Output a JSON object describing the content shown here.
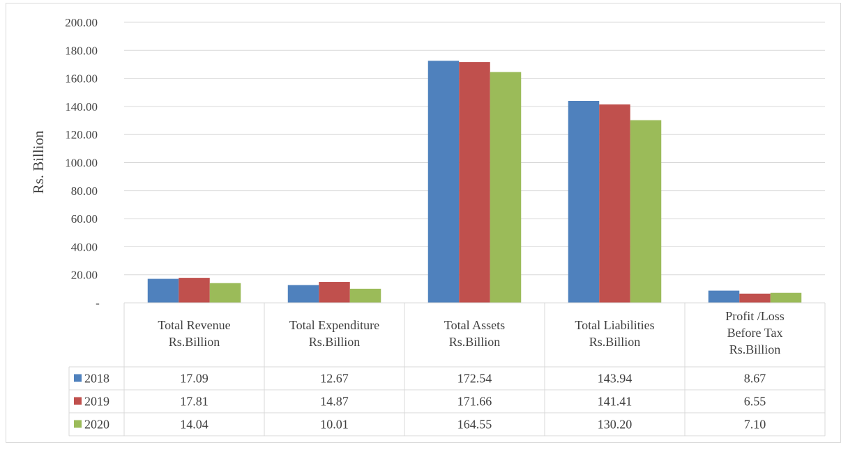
{
  "chart_data": {
    "type": "bar",
    "ylabel": "Rs. Billion",
    "ylim": [
      0,
      200
    ],
    "y_ticks": [
      "-",
      "20.00",
      "40.00",
      "60.00",
      "80.00",
      "100.00",
      "120.00",
      "140.00",
      "160.00",
      "180.00",
      "200.00"
    ],
    "grid": true,
    "legend": "data-table",
    "categories": [
      [
        "Total Revenue",
        "Rs.Billion"
      ],
      [
        "Total Expenditure",
        "Rs.Billion"
      ],
      [
        "Total Assets",
        "Rs.Billion"
      ],
      [
        "Total Liabilities",
        "Rs.Billion"
      ],
      [
        "Profit /Loss",
        "Before Tax",
        "Rs.Billion"
      ]
    ],
    "series": [
      {
        "name": "2018",
        "color": "#4f81bd",
        "values": [
          17.09,
          12.67,
          172.54,
          143.94,
          8.67
        ],
        "labels": [
          "17.09",
          "12.67",
          "172.54",
          "143.94",
          "8.67"
        ]
      },
      {
        "name": "2019",
        "color": "#c0504d",
        "values": [
          17.81,
          14.87,
          171.66,
          141.41,
          6.55
        ],
        "labels": [
          "17.81",
          "14.87",
          "171.66",
          "141.41",
          "6.55"
        ]
      },
      {
        "name": "2020",
        "color": "#9bbb59",
        "values": [
          14.04,
          10.01,
          164.55,
          130.2,
          7.1
        ],
        "labels": [
          "14.04",
          "10.01",
          "164.55",
          "130.20",
          "7.10"
        ]
      }
    ]
  }
}
